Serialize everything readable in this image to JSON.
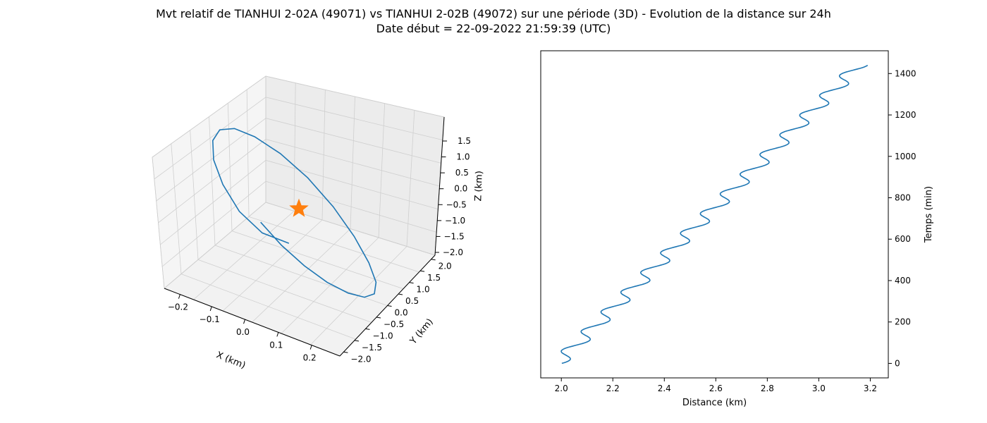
{
  "figure": {
    "title_line1": "Mvt relatif de TIANHUI 2-02A (49071) vs TIANHUI 2-02B (49072) sur une période (3D) - Evolution de la distance sur 24h",
    "title_line2": "Date début = 22-09-2022 21:59:39 (UTC)"
  },
  "colors": {
    "series": "#1f77b4",
    "star": "#ff7f0e",
    "pane": "#f2f2f2",
    "grid": "#cfcfcf"
  },
  "chart_data": [
    {
      "type": "line",
      "projection": "3d",
      "xlabel": "X (km)",
      "ylabel": "Y (km)",
      "zlabel": "Z (km)",
      "xticks": [
        "−0.2",
        "−0.1",
        "0.0",
        "0.1",
        "0.2"
      ],
      "yticks": [
        "−2.0",
        "−1.5",
        "−1.0",
        "−0.5",
        "0.0",
        "0.5",
        "1.0",
        "1.5",
        "2.0"
      ],
      "zticks": [
        "−2.0",
        "−1.5",
        "−1.0",
        "−0.5",
        "0.0",
        "0.5",
        "1.0",
        "1.5"
      ],
      "xlim": [
        -0.27,
        0.27
      ],
      "ylim": [
        -2.2,
        2.2
      ],
      "zlim": [
        -2.1,
        2.0
      ],
      "grid": true,
      "marker": {
        "x": 0.0,
        "y": 0.0,
        "z": 0.0,
        "symbol": "star"
      },
      "series": [
        {
          "x": [
            0.0,
            0.069,
            0.131,
            0.18,
            0.213,
            0.225,
            0.217,
            0.188,
            0.141,
            0.081,
            0.015,
            -0.053,
            -0.115,
            -0.167,
            -0.205,
            -0.226,
            -0.228,
            -0.212,
            -0.178,
            -0.129,
            -0.068,
            0.0
          ],
          "y": [
            -1.99,
            -1.7,
            -1.23,
            -0.61,
            0.1,
            0.81,
            1.42,
            1.84,
            2.01,
            1.94,
            1.61,
            1.07,
            0.36,
            -0.37,
            -0.99,
            -1.51,
            -1.85,
            -1.99,
            -1.9,
            -1.61,
            -1.12,
            -0.52
          ],
          "z": [
            0.0,
            -0.54,
            -1.05,
            -1.5,
            -1.84,
            -2.04,
            -2.06,
            -1.87,
            -1.47,
            -0.88,
            -0.17,
            0.55,
            1.19,
            1.66,
            1.92,
            1.95,
            1.74,
            1.31,
            0.73,
            0.08,
            -0.46,
            -0.74
          ]
        }
      ]
    },
    {
      "type": "line",
      "xlabel": "Distance (km)",
      "ylabel": "Temps (min)",
      "xlim": [
        1.92,
        3.27
      ],
      "ylim": [
        -70,
        1510
      ],
      "xticks": [
        2.0,
        2.2,
        2.4,
        2.6,
        2.8,
        3.0,
        3.2
      ],
      "yticks": [
        0,
        200,
        400,
        600,
        800,
        1000,
        1200,
        1400
      ],
      "xtick_labels": [
        "2.0",
        "2.2",
        "2.4",
        "2.6",
        "2.8",
        "3.0",
        "3.2"
      ],
      "ytick_labels": [
        "0",
        "200",
        "400",
        "600",
        "800",
        "1000",
        "1200",
        "1400"
      ],
      "ytick_side": "right",
      "grid": false,
      "series": [
        {
          "trend_start_km": 1.985,
          "trend_end_km": 3.155,
          "amplitude_km": 0.035,
          "period_min": 95,
          "phase_rad": 0.5,
          "duration_min": 1440,
          "step_min": 3
        }
      ]
    }
  ]
}
